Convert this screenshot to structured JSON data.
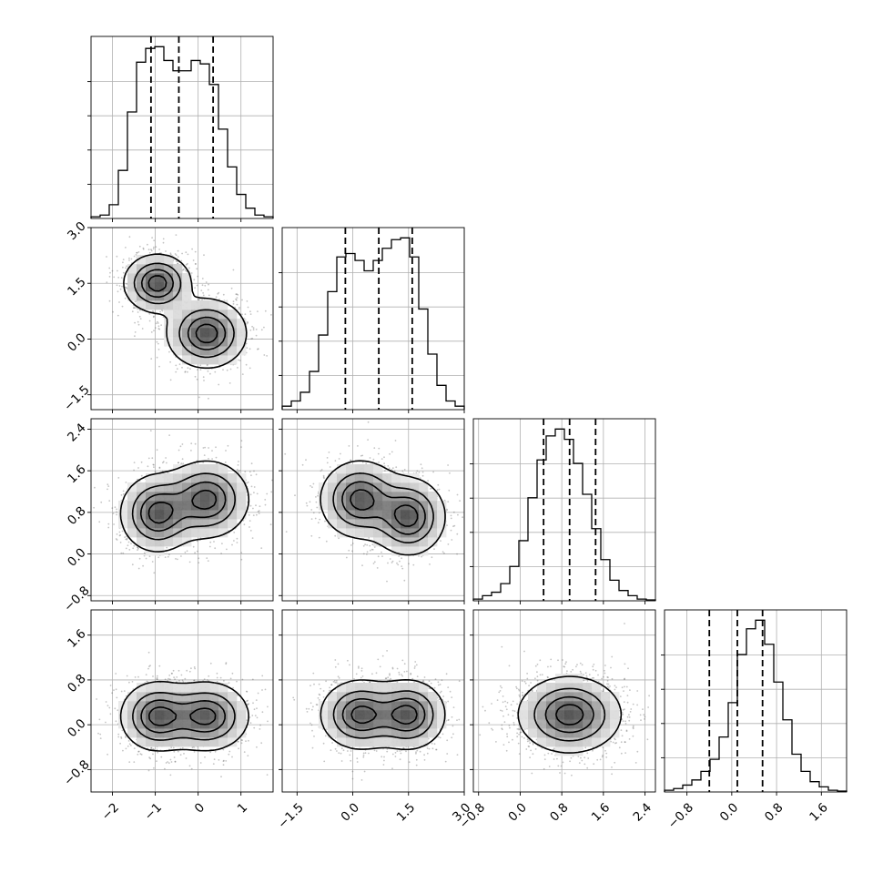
{
  "chart_data": {
    "type": "corner",
    "title": "",
    "grid": true,
    "dimensions": [
      {
        "label": "",
        "range": [
          -2.5,
          1.75
        ],
        "ticks": [
          -2,
          -1,
          0,
          1
        ],
        "tick_labels": [
          "−2",
          "−1",
          "0",
          "1"
        ]
      },
      {
        "label": "",
        "range": [
          -1.9,
          3.0
        ],
        "ticks": [
          -1.5,
          0.0,
          1.5,
          3.0
        ],
        "tick_labels": [
          "−1.5",
          "0.0",
          "1.5",
          "3.0"
        ]
      },
      {
        "label": "",
        "range": [
          -0.9,
          2.6
        ],
        "ticks": [
          -0.8,
          0.0,
          0.8,
          1.6,
          2.4
        ],
        "tick_labels": [
          "−0.8",
          "0.0",
          "0.8",
          "1.6",
          "2.4"
        ]
      },
      {
        "label": "",
        "range": [
          -1.2,
          2.05
        ],
        "ticks": [
          -0.8,
          0.0,
          0.8,
          1.6
        ],
        "tick_labels": [
          "−0.8",
          "0.0",
          "0.8",
          "1.6"
        ]
      }
    ],
    "diagonal_histograms": [
      {
        "bins": 20,
        "counts": [
          0.01,
          0.02,
          0.08,
          0.28,
          0.62,
          0.91,
          0.99,
          1.0,
          0.92,
          0.86,
          0.86,
          0.92,
          0.9,
          0.78,
          0.52,
          0.3,
          0.14,
          0.06,
          0.02,
          0.01
        ],
        "quantiles": [
          -1.1,
          -0.45,
          0.35
        ]
      },
      {
        "bins": 20,
        "counts": [
          0.02,
          0.05,
          0.1,
          0.22,
          0.43,
          0.68,
          0.88,
          0.9,
          0.86,
          0.8,
          0.86,
          0.93,
          0.98,
          0.99,
          0.88,
          0.58,
          0.32,
          0.14,
          0.05,
          0.02
        ],
        "quantiles": [
          -0.2,
          0.7,
          1.6
        ]
      },
      {
        "bins": 20,
        "counts": [
          0.01,
          0.03,
          0.05,
          0.1,
          0.2,
          0.35,
          0.6,
          0.82,
          0.96,
          1.0,
          0.94,
          0.8,
          0.62,
          0.42,
          0.24,
          0.12,
          0.06,
          0.03,
          0.01,
          0.005
        ],
        "quantiles": [
          0.45,
          0.95,
          1.45
        ]
      },
      {
        "bins": 20,
        "counts": [
          0.01,
          0.02,
          0.04,
          0.07,
          0.12,
          0.19,
          0.32,
          0.52,
          0.8,
          0.95,
          1.0,
          0.86,
          0.64,
          0.42,
          0.22,
          0.12,
          0.06,
          0.03,
          0.01,
          0.005
        ],
        "quantiles": [
          -0.4,
          0.1,
          0.55
        ]
      }
    ],
    "joint_distributions": [
      {
        "row": 1,
        "col": 0,
        "modes": [
          {
            "x": -0.95,
            "y": 1.5,
            "sx": 0.38,
            "sy": 0.38,
            "r": 0.0,
            "w": 1.0
          },
          {
            "x": 0.2,
            "y": 0.15,
            "sx": 0.45,
            "sy": 0.45,
            "r": 0.0,
            "w": 1.0
          }
        ]
      },
      {
        "row": 2,
        "col": 0,
        "modes": [
          {
            "x": -0.95,
            "y": 0.78,
            "sx": 0.42,
            "sy": 0.36,
            "r": 0.0,
            "w": 1.0
          },
          {
            "x": 0.2,
            "y": 1.05,
            "sx": 0.48,
            "sy": 0.36,
            "r": 0.0,
            "w": 1.0
          }
        ]
      },
      {
        "row": 2,
        "col": 1,
        "modes": [
          {
            "x": 0.2,
            "y": 1.05,
            "sx": 0.52,
            "sy": 0.36,
            "r": 0.0,
            "w": 1.0
          },
          {
            "x": 1.5,
            "y": 0.72,
            "sx": 0.48,
            "sy": 0.36,
            "r": 0.0,
            "w": 1.0
          }
        ]
      },
      {
        "row": 3,
        "col": 0,
        "modes": [
          {
            "x": -0.95,
            "y": 0.15,
            "sx": 0.42,
            "sy": 0.3,
            "r": 0.0,
            "w": 1.0
          },
          {
            "x": 0.2,
            "y": 0.15,
            "sx": 0.48,
            "sy": 0.3,
            "r": 0.0,
            "w": 1.0
          }
        ]
      },
      {
        "row": 3,
        "col": 1,
        "modes": [
          {
            "x": 0.2,
            "y": 0.18,
            "sx": 0.52,
            "sy": 0.3,
            "r": 0.0,
            "w": 1.0
          },
          {
            "x": 1.5,
            "y": 0.18,
            "sx": 0.48,
            "sy": 0.3,
            "r": 0.0,
            "w": 1.0
          }
        ]
      },
      {
        "row": 3,
        "col": 2,
        "modes": [
          {
            "x": 0.95,
            "y": 0.18,
            "sx": 0.48,
            "sy": 0.33,
            "r": 0.0,
            "w": 1.0
          }
        ]
      }
    ]
  }
}
